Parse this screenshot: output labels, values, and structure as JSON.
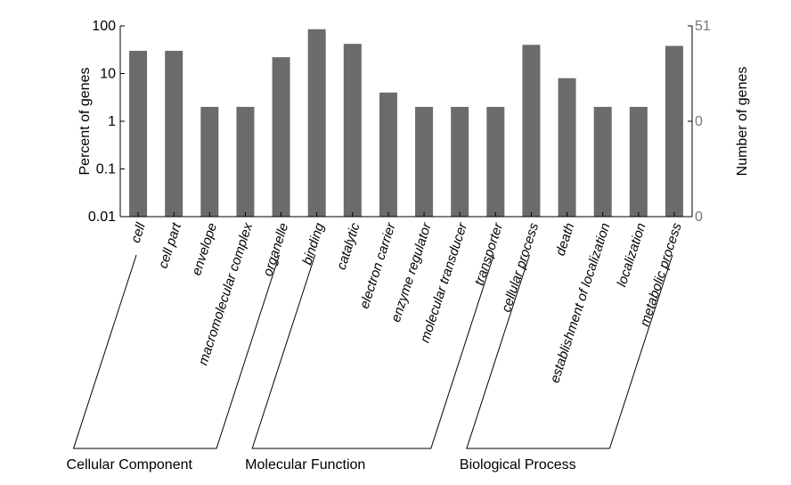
{
  "chart_data": {
    "type": "bar",
    "y_scale": "log",
    "ylim": [
      0.01,
      100
    ],
    "ylabel": "Percent of genes",
    "y_ticks": [
      "0.01",
      "0.1",
      "1",
      "10",
      "100"
    ],
    "y2label": "Number of genes",
    "y2_ticks": [
      "0",
      "0",
      "51"
    ],
    "categories": [
      "cell",
      "cell part",
      "envelope",
      "macromolecular complex",
      "organelle",
      "binding",
      "catalytic",
      "electron carrier",
      "enzyme regulator",
      "molecular transducer",
      "transporter",
      "cellular process",
      "death",
      "establishment of localization",
      "localization",
      "metabolic process"
    ],
    "values": [
      30,
      30,
      2,
      2,
      22,
      85,
      42,
      4,
      2,
      2,
      2,
      40,
      8,
      2,
      2,
      38
    ],
    "groups": [
      {
        "name": "Cellular Component",
        "start": 0,
        "end": 4
      },
      {
        "name": "Molecular Function",
        "start": 5,
        "end": 10
      },
      {
        "name": "Biological Process",
        "start": 11,
        "end": 15
      }
    ],
    "bar_color": "#6b6b6b",
    "grid": false,
    "legend": "none"
  }
}
